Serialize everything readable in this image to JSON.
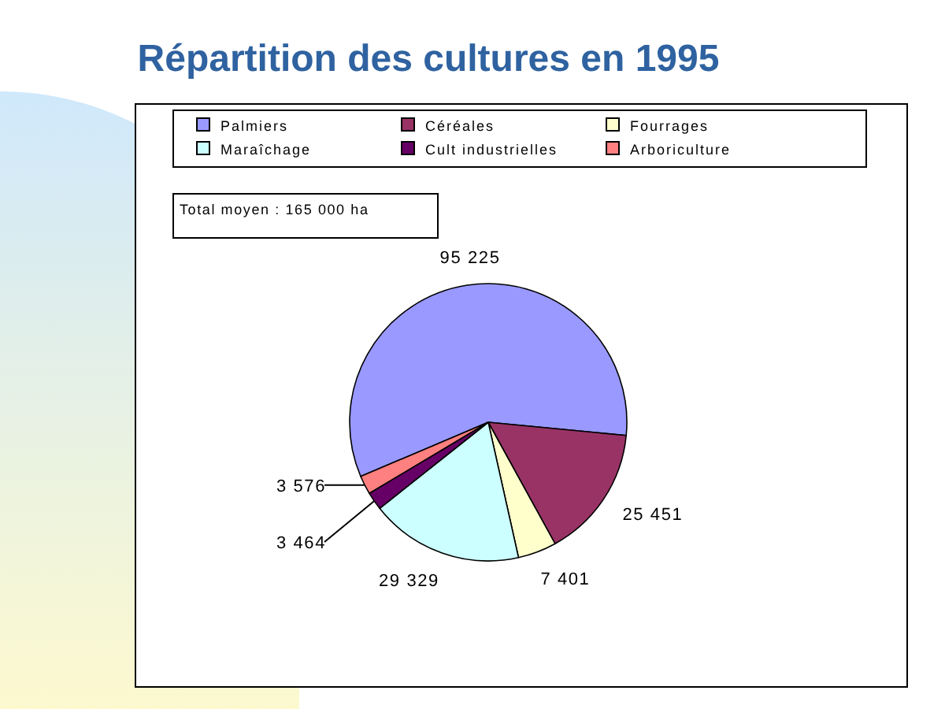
{
  "chart_data": {
    "type": "pie",
    "title": "Répartition des cultures en 1995",
    "categories": [
      "Palmiers",
      "Céréales",
      "Fourrages",
      "Maraîchage",
      "Cult industrielles",
      "Arboriculture"
    ],
    "values": [
      95225,
      25451,
      7401,
      29329,
      3464,
      3576
    ],
    "value_labels": [
      "95 225",
      "25 451",
      "7 401",
      "29 329",
      "3 464",
      "3 576"
    ],
    "colors": [
      "#9999ff",
      "#993366",
      "#ffffcc",
      "#ccffff",
      "#660066",
      "#ff8080"
    ],
    "annotations": [
      "Total moyen : 165 000 ha"
    ],
    "legend": "top"
  }
}
